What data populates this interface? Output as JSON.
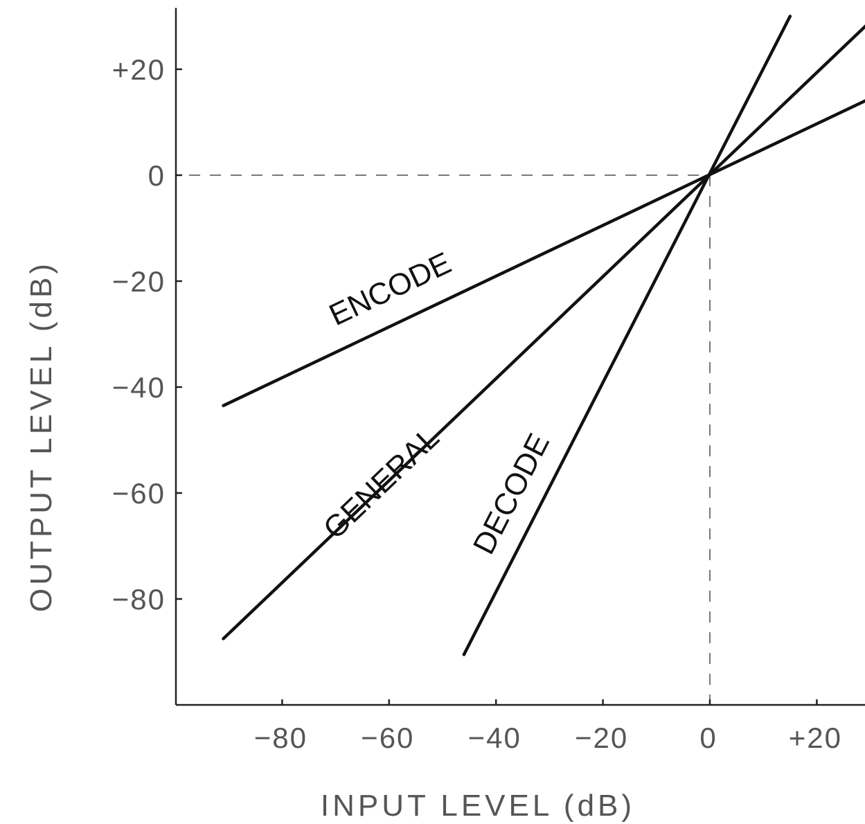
{
  "chart_data": {
    "type": "line",
    "title": "",
    "xlabel": "INPUT LEVEL (dB)",
    "ylabel": "OUTPUT LEVEL (dB)",
    "xlim": [
      -100,
      30
    ],
    "ylim": [
      -100,
      30
    ],
    "x_ticks": [
      -80,
      -60,
      -40,
      -20,
      0,
      20
    ],
    "x_tick_labels": [
      "−80",
      "−60",
      "−40",
      "−20",
      "0",
      "+20"
    ],
    "y_ticks": [
      20,
      0,
      -20,
      -40,
      -60,
      -80
    ],
    "y_tick_labels": [
      "+20",
      "0",
      "−20",
      "−40",
      "−60",
      "−80"
    ],
    "grid": false,
    "reference_lines": [
      {
        "axis": "x",
        "value": 0,
        "style": "dashed"
      },
      {
        "axis": "y",
        "value": 0,
        "style": "dashed"
      }
    ],
    "series": [
      {
        "name": "ENCODE",
        "points": [
          [
            -91,
            -43.5
          ],
          [
            30,
            14.5
          ]
        ]
      },
      {
        "name": "GENERAL",
        "points": [
          [
            -91,
            -87.5
          ],
          [
            30,
            29
          ]
        ]
      },
      {
        "name": "DECODE",
        "points": [
          [
            -46,
            -90.5
          ],
          [
            15,
            30
          ]
        ]
      }
    ]
  }
}
